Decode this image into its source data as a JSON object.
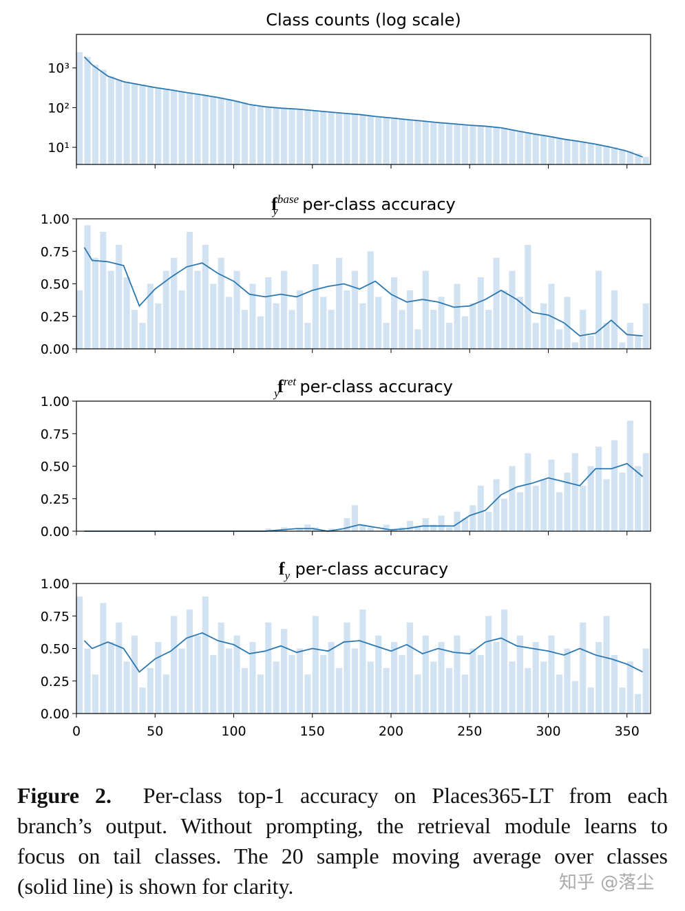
{
  "chart_data": [
    {
      "type": "combo",
      "title": {
        "text": "Class counts (log scale)"
      },
      "log_y": true,
      "xlim": [
        0,
        365
      ],
      "xticks": [
        0,
        50,
        100,
        150,
        200,
        250,
        300,
        350
      ],
      "show_xtick_labels": false,
      "ylim": [
        3.7,
        7000
      ],
      "yticks": [
        {
          "value": 10,
          "label": "10¹"
        },
        {
          "value": 100,
          "label": "10²"
        },
        {
          "value": 1000,
          "label": "10³"
        }
      ],
      "series": [
        {
          "kind": "bar",
          "color": "#c6dbef",
          "x": [
            0,
            5,
            10,
            15,
            20,
            25,
            30,
            35,
            40,
            45,
            50,
            55,
            60,
            65,
            70,
            75,
            80,
            85,
            90,
            95,
            100,
            105,
            110,
            115,
            120,
            125,
            130,
            135,
            140,
            145,
            150,
            155,
            160,
            165,
            170,
            175,
            180,
            185,
            190,
            195,
            200,
            205,
            210,
            215,
            220,
            225,
            230,
            235,
            240,
            245,
            250,
            255,
            260,
            265,
            270,
            275,
            280,
            285,
            290,
            295,
            300,
            305,
            310,
            315,
            320,
            325,
            330,
            335,
            340,
            345,
            350,
            355,
            360
          ],
          "values": [
            2500,
            1900,
            1200,
            900,
            620,
            500,
            450,
            410,
            380,
            350,
            320,
            300,
            280,
            260,
            240,
            225,
            210,
            195,
            180,
            165,
            150,
            135,
            120,
            112,
            105,
            100,
            97,
            94,
            92,
            88,
            85,
            81,
            78,
            75,
            72,
            70,
            67,
            63,
            60,
            57,
            55,
            52,
            50,
            48,
            46,
            44,
            42,
            40,
            39,
            37,
            36,
            35,
            34,
            32,
            31,
            28,
            26,
            24,
            22,
            20,
            19,
            17,
            16,
            15,
            14,
            13,
            12,
            11,
            10,
            9,
            8,
            7,
            5.7
          ]
        },
        {
          "kind": "line",
          "color": "#2a77b0",
          "x": [
            5,
            10,
            20,
            30,
            40,
            50,
            60,
            70,
            80,
            90,
            100,
            110,
            120,
            130,
            140,
            150,
            160,
            170,
            180,
            190,
            200,
            210,
            220,
            230,
            240,
            250,
            260,
            270,
            280,
            290,
            300,
            310,
            320,
            330,
            340,
            350,
            360
          ],
          "values": [
            1900,
            1200,
            620,
            450,
            380,
            320,
            280,
            240,
            210,
            180,
            150,
            120,
            105,
            97,
            92,
            85,
            78,
            72,
            67,
            60,
            55,
            50,
            46,
            42,
            39,
            36,
            34,
            31,
            26,
            22,
            19,
            16,
            14,
            12,
            10,
            8,
            5.7
          ]
        }
      ]
    },
    {
      "type": "combo",
      "title": {
        "symbol": "f",
        "sub": "y",
        "sup": "base",
        "text": "per-class accuracy"
      },
      "log_y": false,
      "xlim": [
        0,
        365
      ],
      "xticks": [
        0,
        50,
        100,
        150,
        200,
        250,
        300,
        350
      ],
      "show_xtick_labels": false,
      "ylim": [
        0,
        1
      ],
      "yticks": [
        {
          "value": 0,
          "label": "0.00"
        },
        {
          "value": 0.25,
          "label": "0.25"
        },
        {
          "value": 0.5,
          "label": "0.50"
        },
        {
          "value": 0.75,
          "label": "0.75"
        },
        {
          "value": 1,
          "label": "1.00"
        }
      ],
      "series": [
        {
          "kind": "bar",
          "color": "#c6dbef",
          "x": [
            0,
            5,
            10,
            15,
            20,
            25,
            30,
            35,
            40,
            45,
            50,
            55,
            60,
            65,
            70,
            75,
            80,
            85,
            90,
            95,
            100,
            105,
            110,
            115,
            120,
            125,
            130,
            135,
            140,
            145,
            150,
            155,
            160,
            165,
            170,
            175,
            180,
            185,
            190,
            195,
            200,
            205,
            210,
            215,
            220,
            225,
            230,
            235,
            240,
            245,
            250,
            255,
            260,
            265,
            270,
            275,
            280,
            285,
            290,
            295,
            300,
            305,
            310,
            315,
            320,
            325,
            330,
            335,
            340,
            345,
            350,
            355,
            360
          ],
          "values": [
            0.45,
            0.95,
            0.7,
            0.9,
            0.6,
            0.8,
            0.55,
            0.3,
            0.2,
            0.5,
            0.35,
            0.6,
            0.7,
            0.45,
            0.9,
            0.6,
            0.8,
            0.5,
            0.7,
            0.4,
            0.6,
            0.3,
            0.5,
            0.25,
            0.55,
            0.35,
            0.6,
            0.3,
            0.45,
            0.2,
            0.65,
            0.4,
            0.3,
            0.7,
            0.45,
            0.6,
            0.35,
            0.75,
            0.4,
            0.2,
            0.55,
            0.3,
            0.45,
            0.15,
            0.6,
            0.3,
            0.4,
            0.2,
            0.5,
            0.25,
            0.35,
            0.55,
            0.3,
            0.7,
            0.45,
            0.6,
            0.4,
            0.8,
            0.2,
            0.35,
            0.5,
            0.15,
            0.4,
            0.05,
            0.3,
            0.1,
            0.6,
            0.2,
            0.45,
            0.05,
            0.2,
            0.1,
            0.35
          ]
        },
        {
          "kind": "line",
          "color": "#2a77b0",
          "x": [
            5,
            10,
            20,
            30,
            40,
            50,
            60,
            70,
            80,
            90,
            100,
            110,
            120,
            130,
            140,
            150,
            160,
            170,
            180,
            190,
            200,
            210,
            220,
            230,
            240,
            250,
            260,
            270,
            280,
            290,
            300,
            310,
            320,
            330,
            340,
            350,
            360
          ],
          "values": [
            0.78,
            0.68,
            0.67,
            0.64,
            0.33,
            0.46,
            0.55,
            0.63,
            0.66,
            0.58,
            0.52,
            0.42,
            0.4,
            0.42,
            0.4,
            0.45,
            0.48,
            0.5,
            0.46,
            0.52,
            0.42,
            0.36,
            0.38,
            0.36,
            0.32,
            0.33,
            0.38,
            0.45,
            0.38,
            0.28,
            0.26,
            0.2,
            0.1,
            0.12,
            0.22,
            0.11,
            0.1
          ]
        }
      ]
    },
    {
      "type": "combo",
      "title": {
        "symbol": "f",
        "sub": "y",
        "sup": "ret",
        "text": "per-class accuracy"
      },
      "log_y": false,
      "xlim": [
        0,
        365
      ],
      "xticks": [
        0,
        50,
        100,
        150,
        200,
        250,
        300,
        350
      ],
      "show_xtick_labels": false,
      "ylim": [
        0,
        1
      ],
      "yticks": [
        {
          "value": 0,
          "label": "0.00"
        },
        {
          "value": 0.25,
          "label": "0.25"
        },
        {
          "value": 0.5,
          "label": "0.50"
        },
        {
          "value": 0.75,
          "label": "0.75"
        },
        {
          "value": 1,
          "label": "1.00"
        }
      ],
      "series": [
        {
          "kind": "bar",
          "color": "#c6dbef",
          "x": [
            0,
            5,
            10,
            15,
            20,
            25,
            30,
            35,
            40,
            45,
            50,
            55,
            60,
            65,
            70,
            75,
            80,
            85,
            90,
            95,
            100,
            105,
            110,
            115,
            120,
            125,
            130,
            135,
            140,
            145,
            150,
            155,
            160,
            165,
            170,
            175,
            180,
            185,
            190,
            195,
            200,
            205,
            210,
            215,
            220,
            225,
            230,
            235,
            240,
            245,
            250,
            255,
            260,
            265,
            270,
            275,
            280,
            285,
            290,
            295,
            300,
            305,
            310,
            315,
            320,
            325,
            330,
            335,
            340,
            345,
            350,
            355,
            360
          ],
          "values": [
            0,
            0,
            0,
            0,
            0,
            0,
            0,
            0,
            0,
            0,
            0,
            0,
            0,
            0,
            0,
            0,
            0,
            0,
            0,
            0,
            0,
            0,
            0,
            0,
            0.02,
            0,
            0.03,
            0,
            0.02,
            0.05,
            0.03,
            0,
            0.02,
            0,
            0.1,
            0.2,
            0.05,
            0.03,
            0,
            0.05,
            0.02,
            0.03,
            0.08,
            0.04,
            0.1,
            0.05,
            0.12,
            0.03,
            0.15,
            0.1,
            0.2,
            0.35,
            0.15,
            0.4,
            0.25,
            0.5,
            0.3,
            0.6,
            0.35,
            0.4,
            0.55,
            0.3,
            0.45,
            0.6,
            0.35,
            0.5,
            0.65,
            0.4,
            0.7,
            0.45,
            0.85,
            0.5,
            0.6
          ]
        },
        {
          "kind": "line",
          "color": "#2a77b0",
          "x": [
            5,
            10,
            20,
            30,
            40,
            50,
            60,
            70,
            80,
            90,
            100,
            110,
            120,
            130,
            140,
            150,
            160,
            170,
            180,
            190,
            200,
            210,
            220,
            230,
            240,
            250,
            260,
            270,
            280,
            290,
            300,
            310,
            320,
            330,
            340,
            350,
            360
          ],
          "values": [
            0,
            0,
            0,
            0,
            0,
            0,
            0,
            0,
            0,
            0,
            0,
            0,
            0,
            0.01,
            0.02,
            0.02,
            0,
            0.02,
            0.05,
            0.03,
            0.01,
            0.02,
            0.04,
            0.04,
            0.04,
            0.12,
            0.16,
            0.28,
            0.34,
            0.37,
            0.41,
            0.38,
            0.35,
            0.48,
            0.48,
            0.52,
            0.42
          ]
        }
      ]
    },
    {
      "type": "combo",
      "title": {
        "symbol": "f",
        "sub": "y",
        "text": "per-class accuracy"
      },
      "log_y": false,
      "xlim": [
        0,
        365
      ],
      "xticks": [
        0,
        50,
        100,
        150,
        200,
        250,
        300,
        350
      ],
      "show_xtick_labels": true,
      "ylim": [
        0,
        1
      ],
      "yticks": [
        {
          "value": 0,
          "label": "0.00"
        },
        {
          "value": 0.25,
          "label": "0.25"
        },
        {
          "value": 0.5,
          "label": "0.50"
        },
        {
          "value": 0.75,
          "label": "0.75"
        },
        {
          "value": 1,
          "label": "1.00"
        }
      ],
      "series": [
        {
          "kind": "bar",
          "color": "#c6dbef",
          "x": [
            0,
            5,
            10,
            15,
            20,
            25,
            30,
            35,
            40,
            45,
            50,
            55,
            60,
            65,
            70,
            75,
            80,
            85,
            90,
            95,
            100,
            105,
            110,
            115,
            120,
            125,
            130,
            135,
            140,
            145,
            150,
            155,
            160,
            165,
            170,
            175,
            180,
            185,
            190,
            195,
            200,
            205,
            210,
            215,
            220,
            225,
            230,
            235,
            240,
            245,
            250,
            255,
            260,
            265,
            270,
            275,
            280,
            285,
            290,
            295,
            300,
            305,
            310,
            315,
            320,
            325,
            330,
            335,
            340,
            345,
            350,
            355,
            360
          ],
          "values": [
            0.9,
            0.5,
            0.3,
            0.85,
            0.55,
            0.7,
            0.4,
            0.6,
            0.2,
            0.35,
            0.55,
            0.3,
            0.75,
            0.5,
            0.8,
            0.6,
            0.9,
            0.45,
            0.7,
            0.5,
            0.6,
            0.35,
            0.55,
            0.3,
            0.7,
            0.4,
            0.65,
            0.45,
            0.5,
            0.3,
            0.75,
            0.45,
            0.55,
            0.35,
            0.7,
            0.5,
            0.8,
            0.4,
            0.6,
            0.35,
            0.55,
            0.45,
            0.7,
            0.3,
            0.6,
            0.4,
            0.55,
            0.35,
            0.6,
            0.3,
            0.5,
            0.45,
            0.75,
            0.55,
            0.8,
            0.4,
            0.6,
            0.35,
            0.55,
            0.4,
            0.6,
            0.3,
            0.5,
            0.25,
            0.7,
            0.2,
            0.55,
            0.75,
            0.45,
            0.2,
            0.4,
            0.15,
            0.5
          ]
        },
        {
          "kind": "line",
          "color": "#2a77b0",
          "x": [
            5,
            10,
            20,
            30,
            40,
            50,
            60,
            70,
            80,
            90,
            100,
            110,
            120,
            130,
            140,
            150,
            160,
            170,
            180,
            190,
            200,
            210,
            220,
            230,
            240,
            250,
            260,
            270,
            280,
            290,
            300,
            310,
            320,
            330,
            340,
            350,
            360
          ],
          "values": [
            0.56,
            0.5,
            0.55,
            0.5,
            0.32,
            0.42,
            0.48,
            0.58,
            0.62,
            0.56,
            0.53,
            0.46,
            0.48,
            0.52,
            0.47,
            0.5,
            0.48,
            0.55,
            0.56,
            0.52,
            0.48,
            0.53,
            0.46,
            0.5,
            0.47,
            0.46,
            0.55,
            0.58,
            0.52,
            0.5,
            0.48,
            0.45,
            0.5,
            0.45,
            0.42,
            0.38,
            0.32
          ]
        }
      ]
    }
  ],
  "caption": {
    "label": "Figure 2.",
    "lines": [
      "Per-class top-1 accuracy on Places365-LT from each",
      "branch’s output. Without prompting, the retrieval module learns to",
      "focus on tail classes. The 20 sample moving average over classes",
      "(solid line) is shown for clarity."
    ]
  },
  "watermark": "知乎 @落尘"
}
